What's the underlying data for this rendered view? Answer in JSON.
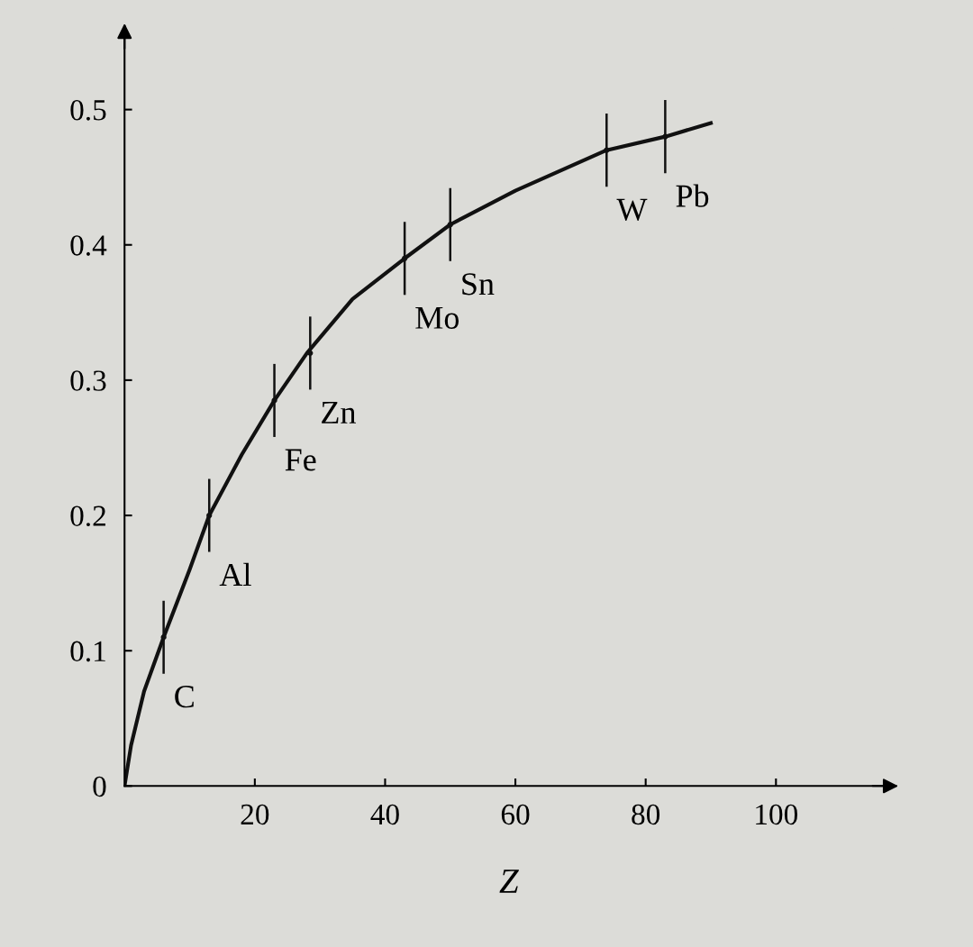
{
  "chart_data": {
    "type": "line",
    "xlabel": "Z",
    "series": [
      {
        "color": "#111111",
        "marker": "none",
        "x": [
          0,
          1,
          3,
          6,
          10,
          13,
          18,
          23,
          28,
          35,
          43,
          50,
          60,
          74,
          83,
          90
        ],
        "values": [
          0,
          0.03,
          0.07,
          0.11,
          0.16,
          0.2,
          0.245,
          0.285,
          0.32,
          0.36,
          0.39,
          0.415,
          0.44,
          0.47,
          0.48,
          0.49
        ]
      },
      {
        "type": "scatter",
        "color": "#111111",
        "x": [
          6,
          13,
          23,
          28.5,
          43,
          50,
          74,
          83
        ],
        "values": [
          0.11,
          0.2,
          0.285,
          0.32,
          0.39,
          0.415,
          0.47,
          0.48
        ],
        "errors": [
          0.027,
          0.027,
          0.027,
          0.027,
          0.027,
          0.027,
          0.027,
          0.027
        ]
      }
    ],
    "annotations": [
      {
        "text": "C",
        "x": 6,
        "y": 0.11
      },
      {
        "text": "Al",
        "x": 13,
        "y": 0.2
      },
      {
        "text": "Fe",
        "x": 23,
        "y": 0.285
      },
      {
        "text": "Zn",
        "x": 28.5,
        "y": 0.32
      },
      {
        "text": "Mo",
        "x": 43,
        "y": 0.39
      },
      {
        "text": "Sn",
        "x": 50,
        "y": 0.415
      },
      {
        "text": "W",
        "x": 74,
        "y": 0.47
      },
      {
        "text": "Pb",
        "x": 83,
        "y": 0.48
      }
    ],
    "xlim": [
      0,
      118
    ],
    "ylim": [
      0,
      0.56
    ],
    "xticks": [
      20,
      40,
      60,
      80,
      100
    ],
    "yticks": [
      0,
      0.1,
      0.2,
      0.3,
      0.4,
      0.5
    ],
    "grid": false,
    "legend": false
  }
}
